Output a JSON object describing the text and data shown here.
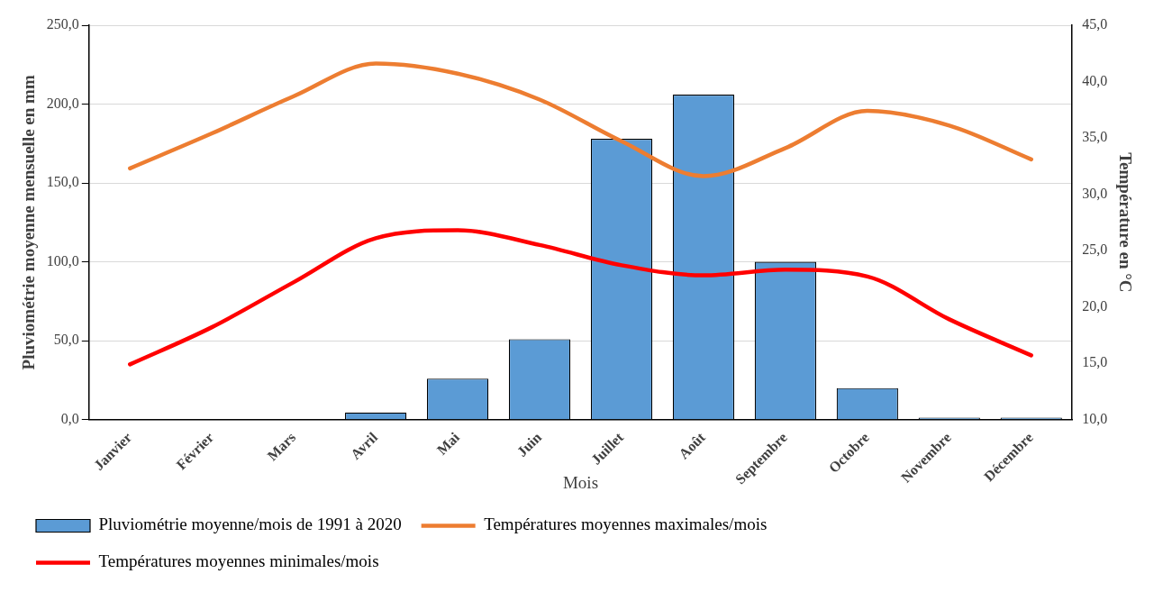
{
  "chart_data": {
    "type": "bar",
    "xlabel": "Mois",
    "ylabel": "Pluviométrie moyenne mensuelle en mm",
    "y2label": "Température en °C",
    "categories": [
      "Janvier",
      "Février",
      "Mars",
      "Avril",
      "Mai",
      "Juin",
      "Juillet",
      "Août",
      "Septembre",
      "Octobre",
      "Novembre",
      "Décembre"
    ],
    "series": [
      {
        "name": "Pluviométrie moyenne/mois de 1991 à 2020",
        "color": "#5b9bd5",
        "values": [
          0,
          0,
          0,
          4.5,
          26,
          51,
          178,
          206,
          100,
          20,
          1.3,
          1.3
        ]
      },
      {
        "name": "Températures moyennes maximales/mois",
        "type": "line",
        "axis": "y2",
        "color": "#ed7d31",
        "values": [
          32.3,
          35.4,
          38.7,
          41.6,
          40.7,
          38.4,
          34.7,
          31.6,
          34.1,
          37.4,
          36.1,
          33.1
        ]
      },
      {
        "name": "Températures moyennes minimales/mois",
        "type": "line",
        "axis": "y2",
        "color": "#ff0000",
        "values": [
          14.9,
          18.2,
          22.2,
          26.1,
          26.8,
          25.5,
          23.7,
          22.8,
          23.3,
          22.7,
          18.9,
          15.7
        ]
      }
    ],
    "ylim": [
      0,
      250
    ],
    "yticks": [
      {
        "value": 0,
        "label": "0,0"
      },
      {
        "value": 50,
        "label": "50,0"
      },
      {
        "value": 100,
        "label": "100,0"
      },
      {
        "value": 150,
        "label": "150,0"
      },
      {
        "value": 200,
        "label": "200,0"
      },
      {
        "value": 250,
        "label": "250,0"
      }
    ],
    "y2lim": [
      10,
      45
    ],
    "y2ticks": [
      {
        "value": 10,
        "label": "10,0"
      },
      {
        "value": 15,
        "label": "15,0"
      },
      {
        "value": 20,
        "label": "20,0"
      },
      {
        "value": 25,
        "label": "25,0"
      },
      {
        "value": 30,
        "label": "30,0"
      },
      {
        "value": 35,
        "label": "35,0"
      },
      {
        "value": 40,
        "label": "40,0"
      },
      {
        "value": 45,
        "label": "45,0"
      }
    ],
    "grid": "y",
    "legend": "bottom",
    "marker": "none"
  }
}
